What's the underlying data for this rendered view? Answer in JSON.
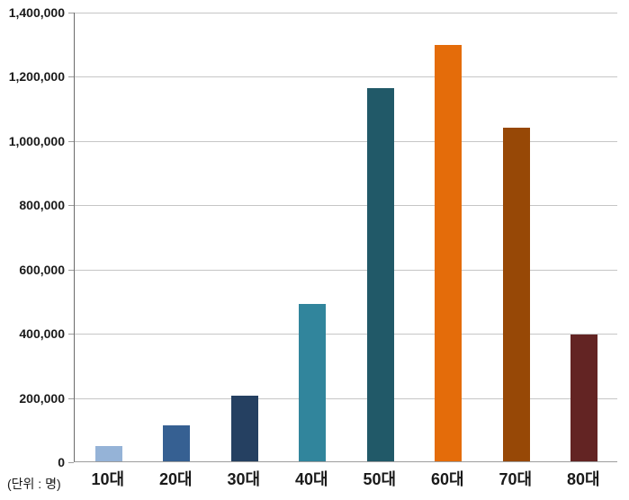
{
  "chart_data": {
    "type": "bar",
    "title": "",
    "xlabel": "",
    "ylabel": "",
    "unit_annotation": "(단위 : 명)",
    "categories": [
      "10대",
      "20대",
      "30대",
      "40대",
      "50대",
      "60대",
      "70대",
      "80대"
    ],
    "values": [
      48000,
      113000,
      205000,
      490000,
      1162000,
      1295000,
      1040000,
      394000
    ],
    "bar_colors": [
      "#95B3D7",
      "#366092",
      "#254061",
      "#31859C",
      "#215968",
      "#E46C0A",
      "#974806",
      "#632423"
    ],
    "ylim": [
      0,
      1400000
    ],
    "ytick_step": 200000,
    "ytick_labels": [
      "0",
      "200,000",
      "400,000",
      "600,000",
      "800,000",
      "1,000,000",
      "1,200,000",
      "1,400,000"
    ],
    "grid": true,
    "legend": "none",
    "text_color": "#1a1a1a",
    "gridline_color": "#c6c6c6",
    "axis_color": "#9d9d9d"
  }
}
